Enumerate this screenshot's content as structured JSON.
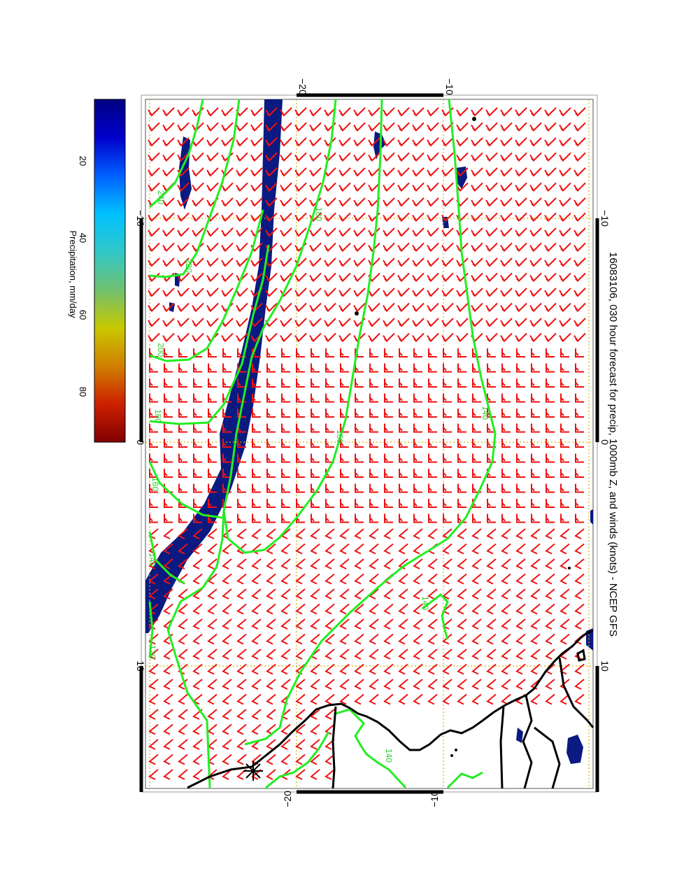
{
  "title": "16083106, 030 hour forecast for precip, 1000mb Z, and winds (knots) - NCEP GFS",
  "colorbar": {
    "label": "Precipitation, mm/day",
    "ticks": [
      "20",
      "40",
      "60",
      "80"
    ],
    "colors": [
      "#000080",
      "#0000cc",
      "#0060ff",
      "#00c0ff",
      "#30c8c8",
      "#70c070",
      "#c8c800",
      "#d08000",
      "#cc2000",
      "#800000"
    ]
  },
  "axes": {
    "top_ticks": [
      "−20",
      "−10"
    ],
    "bottom_ticks": [
      "−20",
      "−10"
    ],
    "left_ticks": [
      "−10",
      "0",
      "10"
    ],
    "right_ticks": [
      "−10",
      "0",
      "10"
    ]
  },
  "contour_labels": [
    "240",
    "220",
    "200",
    "180",
    "160",
    "140",
    "120",
    "180",
    "160",
    "140",
    "140",
    "140"
  ],
  "colors": {
    "contour": "#22ee22",
    "barb": "#ee1111",
    "precip": "#0a1a80",
    "coast": "#000000",
    "grid": "#d4b400"
  },
  "icons": [
    "wind-barb-icon",
    "station-star-icon"
  ]
}
